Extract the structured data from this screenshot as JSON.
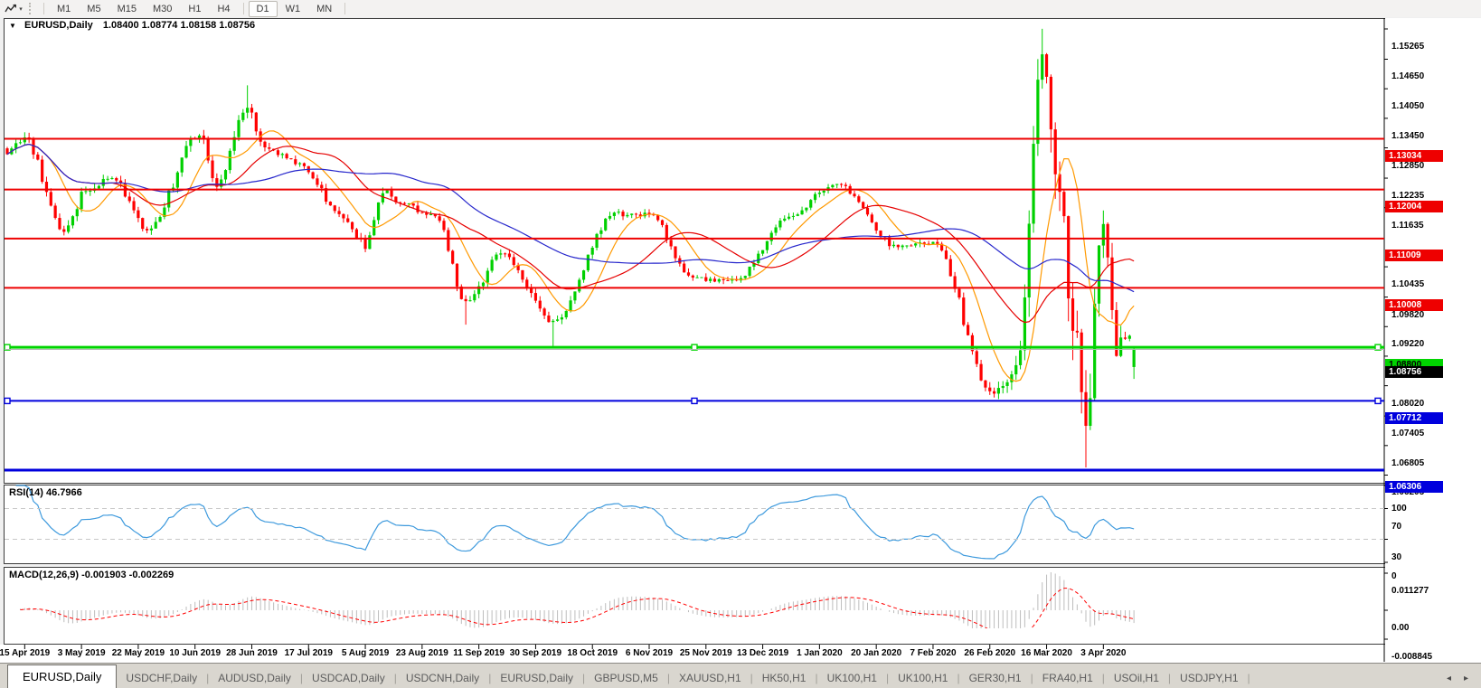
{
  "toolbar": {
    "timeframes": [
      "M1",
      "M5",
      "M15",
      "M30",
      "H1",
      "H4",
      "D1",
      "W1",
      "MN"
    ],
    "active_timeframe": "D1",
    "chart_shift_icon": "indicator-zigzag-icon"
  },
  "chart": {
    "title_symbol": "EURUSD,Daily",
    "title_ohlc": "1.08400 1.08774 1.08158 1.08756"
  },
  "rsi_panel": {
    "label": "RSI(14) 46.7966"
  },
  "macd_panel": {
    "label": "MACD(12,26,9) -0.001903 -0.002269"
  },
  "tabs": [
    "EURUSD,Daily",
    "USDCHF,Daily",
    "AUDUSD,Daily",
    "USDCAD,Daily",
    "USDCNH,Daily",
    "EURUSD,Daily",
    "GBPUSD,M5",
    "XAUUSD,H1",
    "HK50,H1",
    "UK100,H1",
    "UK100,H1",
    "GER30,H1",
    "FRA40,H1",
    "USOil,H1",
    "USDJPY,H1"
  ],
  "active_tab_index": 0,
  "chart_data": {
    "type": "candlestick",
    "symbol": "EURUSD",
    "period": "Daily",
    "last_bar": {
      "open": 1.084,
      "high": 1.08774,
      "low": 1.08158,
      "close": 1.08756
    },
    "bars_count": 259,
    "up_color": "#00d000",
    "down_color": "#ff0000",
    "price_ticks": [
      "1.15265",
      "1.14650",
      "1.14050",
      "1.13450",
      "1.12850",
      "1.12235",
      "1.11635",
      "1.10435",
      "1.09820",
      "1.09220",
      "1.08620",
      "1.08020",
      "1.07405",
      "1.06805",
      "1.06205"
    ],
    "date_ticks": [
      "15 Apr 2019",
      "3 May 2019",
      "22 May 2019",
      "10 Jun 2019",
      "28 Jun 2019",
      "17 Jul 2019",
      "5 Aug 2019",
      "23 Aug 2019",
      "11 Sep 2019",
      "30 Sep 2019",
      "18 Oct 2019",
      "6 Nov 2019",
      "25 Nov 2019",
      "13 Dec 2019",
      "1 Jan 2020",
      "20 Jan 2020",
      "7 Feb 2020",
      "26 Feb 2020",
      "16 Mar 2020",
      "3 Apr 2020"
    ],
    "horizontal_lines": [
      {
        "price": 1.13034,
        "label": "1.13034",
        "color": "#ee0000",
        "width": 2,
        "label_bg": "#ee0000",
        "label_fg": "#ffffff",
        "handles": false
      },
      {
        "price": 1.12004,
        "label": "1.12004",
        "color": "#ee0000",
        "width": 2,
        "label_bg": "#ee0000",
        "label_fg": "#ffffff",
        "handles": false
      },
      {
        "price": 1.11009,
        "label": "1.11009",
        "color": "#ee0000",
        "width": 2,
        "label_bg": "#ee0000",
        "label_fg": "#ffffff",
        "handles": false
      },
      {
        "price": 1.10008,
        "label": "1.10008",
        "color": "#ee0000",
        "width": 2,
        "label_bg": "#ee0000",
        "label_fg": "#ffffff",
        "handles": false
      },
      {
        "price": 1.088,
        "label": "1.08800",
        "color": "#00d400",
        "width": 3,
        "label_bg": "#00d400",
        "label_fg": "#000000",
        "handles": true
      },
      {
        "price": 1.07712,
        "label": "1.07712",
        "color": "#0000dd",
        "width": 2,
        "label_bg": "#0000dd",
        "label_fg": "#ffffff",
        "handles": true
      },
      {
        "price": 1.06306,
        "label": "1.06306",
        "color": "#0000dd",
        "width": 3,
        "label_bg": "#0000dd",
        "label_fg": "#ffffff",
        "handles": false
      }
    ],
    "current_price_line": {
      "price": 1.08756,
      "label": "1.08756",
      "color": "#b4b4b4",
      "label_bg": "#000000",
      "label_fg": "#ffffff"
    },
    "moving_averages": [
      {
        "period": 10,
        "color": "#ff9900"
      },
      {
        "period": 25,
        "color": "#e60000"
      },
      {
        "period": 50,
        "color": "#2727cc"
      }
    ],
    "anchors": [
      [
        0,
        1.1272,
        0.0016
      ],
      [
        4,
        1.1304,
        0.0015
      ],
      [
        13,
        1.1117,
        0.0016
      ],
      [
        18,
        1.12,
        0.0015
      ],
      [
        24,
        1.1223,
        0.0014
      ],
      [
        32,
        1.1118,
        0.0014
      ],
      [
        44,
        1.1315,
        0.0018
      ],
      [
        48,
        1.121,
        0.0016
      ],
      [
        55,
        1.1366,
        0.002
      ],
      [
        59,
        1.1285,
        0.0016
      ],
      [
        67,
        1.1252,
        0.0013
      ],
      [
        77,
        1.1145,
        0.0013
      ],
      [
        82,
        1.1085,
        0.0018
      ],
      [
        86,
        1.1195,
        0.0018
      ],
      [
        90,
        1.117,
        0.0014
      ],
      [
        98,
        1.1145,
        0.0012
      ],
      [
        105,
        1.0972,
        0.0016
      ],
      [
        113,
        1.1073,
        0.0014
      ],
      [
        125,
        1.0932,
        0.0014
      ],
      [
        139,
        1.115,
        0.0013
      ],
      [
        147,
        1.1152,
        0.0012
      ],
      [
        157,
        1.1021,
        0.0012
      ],
      [
        167,
        1.1018,
        0.0011
      ],
      [
        179,
        1.1145,
        0.0011
      ],
      [
        190,
        1.1212,
        0.001
      ],
      [
        204,
        1.1084,
        0.0011
      ],
      [
        212,
        1.1093,
        0.0012
      ],
      [
        226,
        1.0785,
        0.002
      ],
      [
        231,
        1.083,
        0.004
      ],
      [
        237,
        1.1456,
        0.0075
      ],
      [
        241,
        1.118,
        0.0085
      ],
      [
        244,
        1.0915,
        0.009
      ],
      [
        247,
        1.0727,
        0.008
      ],
      [
        251,
        1.1141,
        0.0055
      ],
      [
        254,
        1.0855,
        0.0045
      ],
      [
        256,
        1.0897,
        0.003
      ],
      [
        258,
        1.0876,
        0.0022
      ]
    ],
    "wick_spikes": {
      "55": {
        "h": 1.1412
      },
      "105": {
        "l": 1.0926
      },
      "125": {
        "l": 1.0879
      },
      "226": {
        "l": 1.0778
      },
      "237": {
        "h": 1.1495
      },
      "247": {
        "l": 1.0636
      },
      "251": {
        "h": 1.1147
      }
    },
    "rsi": {
      "period": 14,
      "current": 46.7966,
      "levels": [
        70,
        30
      ],
      "axis_labels": [
        "100",
        "70",
        "30",
        "0"
      ],
      "line_color": "#3e9add"
    },
    "macd": {
      "fast": 12,
      "slow": 26,
      "signal": 9,
      "current_macd": -0.001903,
      "current_signal": -0.002269,
      "axis_labels": [
        "0.011277",
        "0.00",
        "-0.008845"
      ],
      "hist_color": "#bdbdbd",
      "signal_color": "#ff0000"
    }
  }
}
